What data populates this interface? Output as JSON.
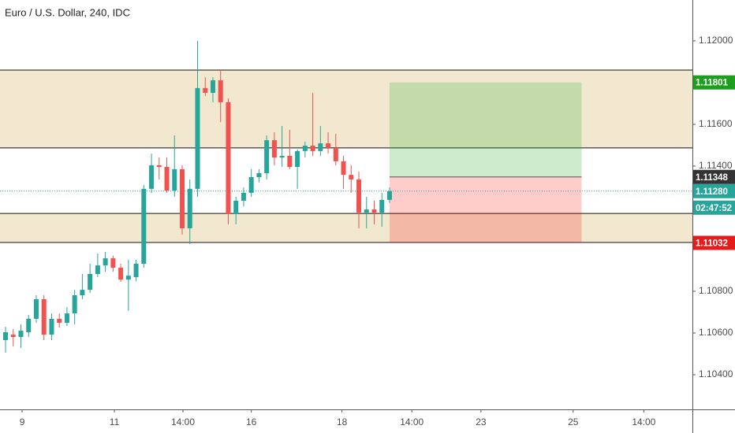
{
  "chart_data": {
    "type": "candlestick",
    "title": "Euro / U.S. Dollar, 240, IDC",
    "up_color": "#26a69a",
    "down_color": "#ef5350",
    "open": [
      1.10566,
      1.10592,
      1.10581,
      1.10604,
      1.10668,
      1.10762,
      1.10592,
      1.10668,
      1.10649,
      1.10694,
      1.10781,
      1.10807,
      1.10883,
      1.10924,
      1.10958,
      1.10913,
      1.10856,
      1.10868,
      1.10932,
      1.11291,
      1.11404,
      1.11396,
      1.11283,
      1.11385,
      1.11102,
      1.11291,
      1.11774,
      1.11751,
      1.11811,
      1.11706,
      1.1117,
      1.11234,
      1.11272,
      1.11347,
      1.11366,
      1.11524,
      1.11441,
      1.11449,
      1.11396,
      1.11472,
      1.11498,
      1.11472,
      1.11509,
      1.11487,
      1.11423,
      1.11358,
      1.11336,
      1.11177,
      1.11192,
      1.11177,
      1.11238
    ],
    "high": [
      1.1063,
      1.10619,
      1.10641,
      1.10687,
      1.10781,
      1.10781,
      1.10694,
      1.10694,
      1.10724,
      1.10807,
      1.10883,
      1.10932,
      1.10981,
      1.10989,
      1.1097,
      1.10932,
      1.10951,
      1.10951,
      1.11309,
      1.1146,
      1.11441,
      1.11441,
      1.11547,
      1.11404,
      1.11336,
      1.12,
      1.11826,
      1.11826,
      1.11864,
      1.11725,
      1.11253,
      1.11298,
      1.11385,
      1.11385,
      1.11547,
      1.11562,
      1.11592,
      1.11574,
      1.11479,
      1.11517,
      1.11751,
      1.11592,
      1.11562,
      1.11555,
      1.11449,
      1.11404,
      1.11374,
      1.11253,
      1.11234,
      1.11272,
      1.11298
    ],
    "low": [
      1.10506,
      1.10536,
      1.10528,
      1.10581,
      1.10649,
      1.10566,
      1.10566,
      1.10626,
      1.10634,
      1.10641,
      1.10762,
      1.10792,
      1.10868,
      1.10894,
      1.10894,
      1.10845,
      1.10706,
      1.10849,
      1.10913,
      1.11272,
      1.11336,
      1.11272,
      1.11253,
      1.11072,
      1.11026,
      1.11253,
      1.11736,
      1.11706,
      1.11611,
      1.11121,
      1.11121,
      1.11207,
      1.11253,
      1.11321,
      1.11336,
      1.11404,
      1.11396,
      1.11385,
      1.11291,
      1.11441,
      1.11449,
      1.11449,
      1.1146,
      1.11404,
      1.11291,
      1.11272,
      1.11102,
      1.11102,
      1.11121,
      1.11109,
      1.11223
    ],
    "close": [
      1.10604,
      1.10581,
      1.10611,
      1.10668,
      1.10762,
      1.10592,
      1.10668,
      1.10649,
      1.10694,
      1.10781,
      1.10807,
      1.10883,
      1.10924,
      1.10958,
      1.10913,
      1.10856,
      1.10875,
      1.10932,
      1.11291,
      1.11404,
      1.11396,
      1.11283,
      1.11385,
      1.11102,
      1.11291,
      1.11774,
      1.11751,
      1.11811,
      1.11706,
      1.1117,
      1.11234,
      1.11272,
      1.11347,
      1.11366,
      1.11524,
      1.11441,
      1.11449,
      1.11396,
      1.11472,
      1.11498,
      1.11472,
      1.11509,
      1.11487,
      1.11423,
      1.11358,
      1.11336,
      1.11177,
      1.11192,
      1.11177,
      1.11238,
      1.1128
    ],
    "xlim": [
      -0.72,
      89.43
    ],
    "xticks": [
      {
        "value": 2.16,
        "label": "9"
      },
      {
        "value": 14.17,
        "label": "11"
      },
      {
        "value": 23.1,
        "label": "14:00"
      },
      {
        "value": 32.0,
        "label": "16"
      },
      {
        "value": 43.8,
        "label": "18"
      },
      {
        "value": 52.9,
        "label": "14:00"
      },
      {
        "value": 61.9,
        "label": "23"
      },
      {
        "value": 73.9,
        "label": "25"
      },
      {
        "value": 83.1,
        "label": "14:00"
      }
    ],
    "ylim": [
      1.10234,
      1.12196
    ],
    "yticks": [
      {
        "value": 1.104,
        "label": "1.10400"
      },
      {
        "value": 1.106,
        "label": "1.10600"
      },
      {
        "value": 1.108,
        "label": "1.10800"
      },
      {
        "value": 1.114,
        "label": "1.11400"
      },
      {
        "value": 1.116,
        "label": "1.11600"
      },
      {
        "value": 1.12,
        "label": "1.12000"
      }
    ],
    "zones": [
      {
        "top": 1.1186,
        "bottom": 1.11487
      },
      {
        "top": 1.11173,
        "bottom": 1.11034
      }
    ],
    "zone_color": "#f2e8d0",
    "position": {
      "start": 50,
      "end": 75,
      "target": {
        "value": 1.11801,
        "label": "1.11801"
      },
      "entry": {
        "value": 1.11348,
        "label": "1.11348"
      },
      "stop": {
        "value": 1.11032,
        "label": "1.11032"
      },
      "profit_color": "#38b438",
      "loss_color": "#ff0000"
    },
    "last_price": {
      "value": 1.1128,
      "label": "1.11280"
    },
    "countdown": "02:47:52"
  }
}
